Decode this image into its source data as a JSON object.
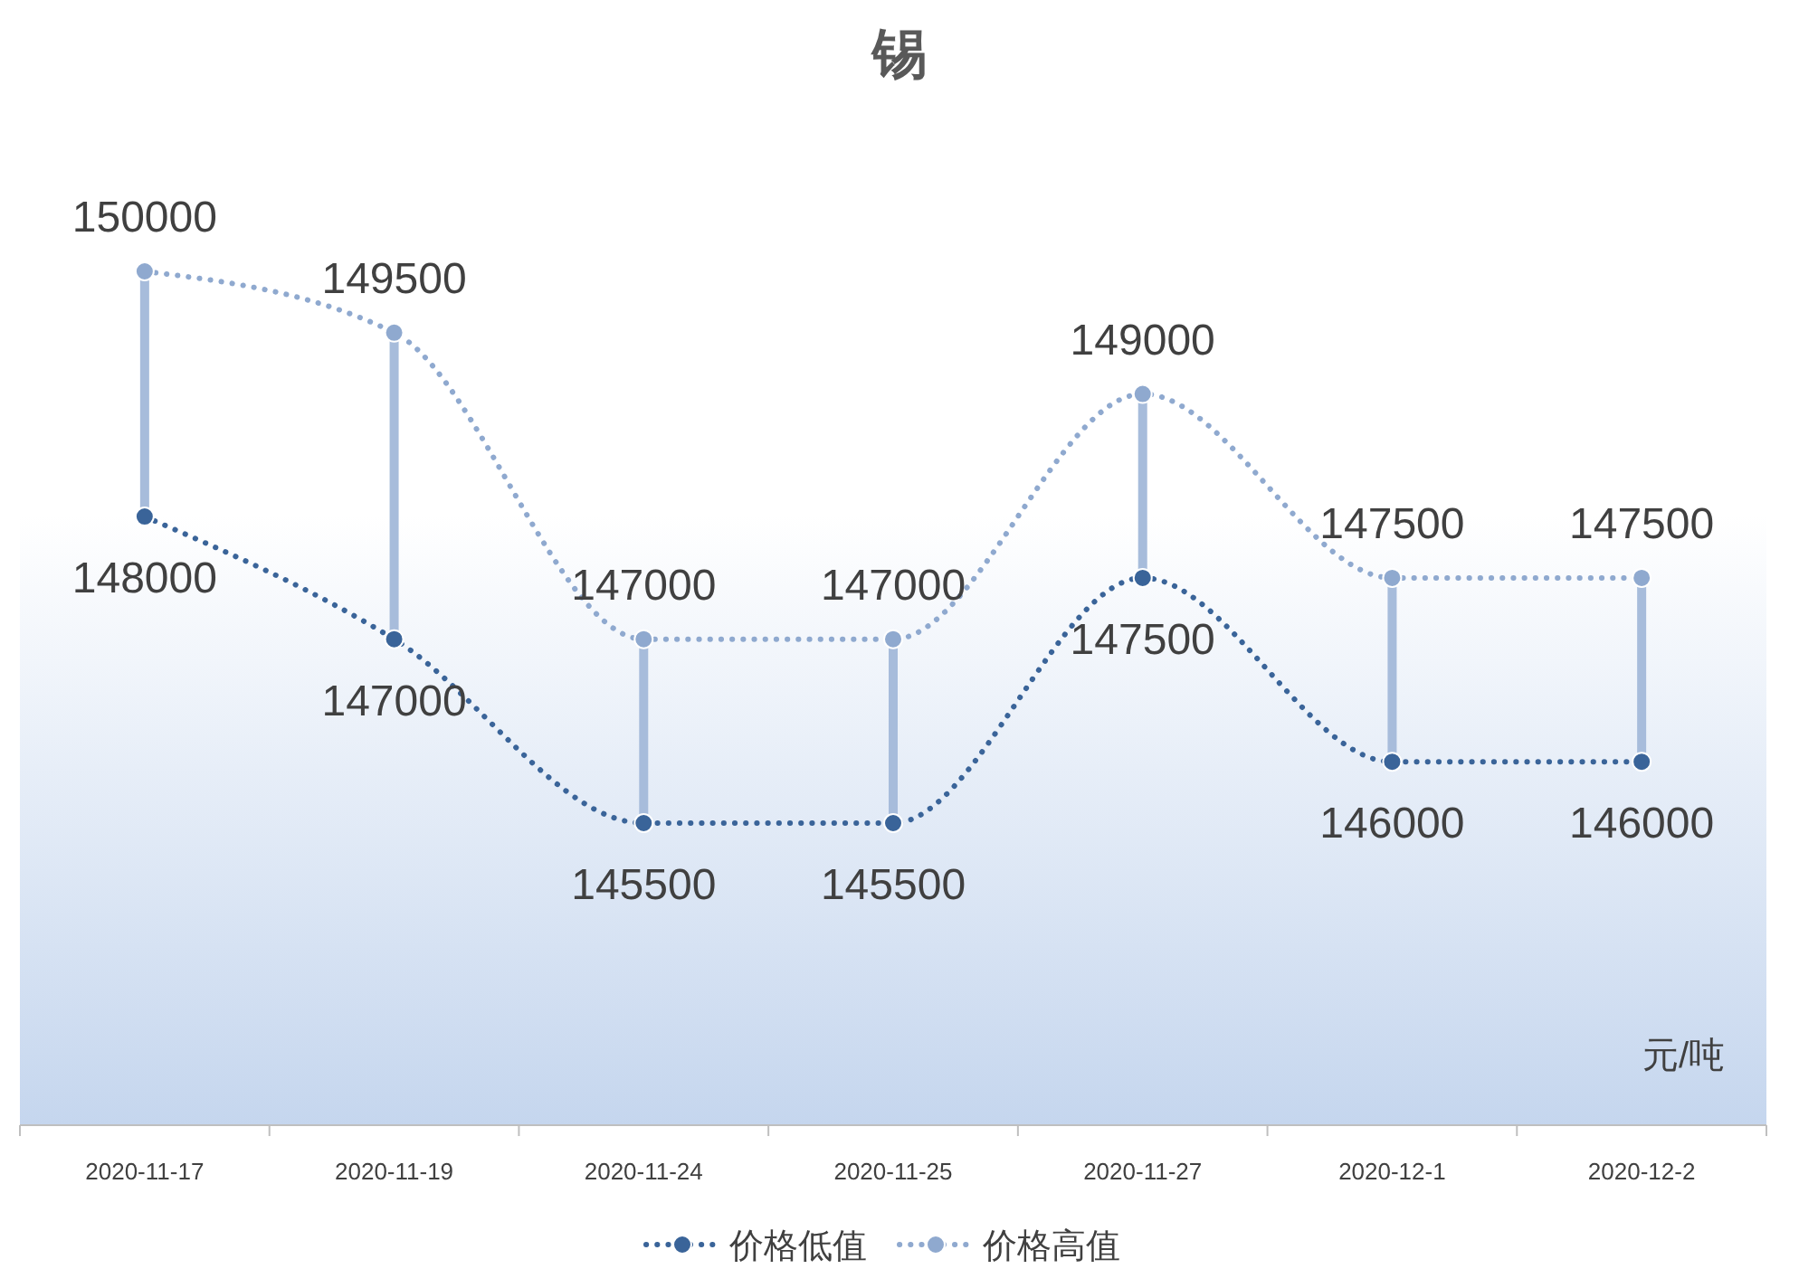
{
  "chart_data": {
    "type": "line",
    "title": "锡",
    "categories": [
      "2020-11-17",
      "2020-11-19",
      "2020-11-24",
      "2020-11-25",
      "2020-11-27",
      "2020-12-1",
      "2020-12-2"
    ],
    "series": [
      {
        "name": "价格低值",
        "color": "#3a6499",
        "values": [
          148000,
          147000,
          145500,
          145500,
          147500,
          146000,
          146000
        ]
      },
      {
        "name": "价格高值",
        "color": "#8fa9cf",
        "values": [
          150000,
          149500,
          147000,
          147000,
          149000,
          147500,
          147500
        ]
      }
    ],
    "annotations": [
      "元/吨"
    ],
    "data_labels": true,
    "legend": "bottom",
    "marker": "circle",
    "line_style": "dotted",
    "grid": false
  }
}
